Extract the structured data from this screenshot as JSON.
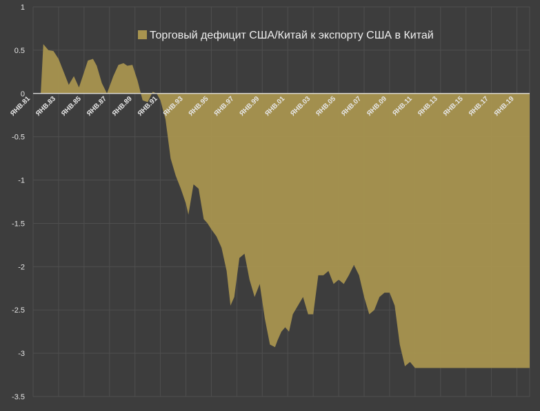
{
  "chart_data": {
    "type": "area",
    "title": "",
    "xlabel": "",
    "ylabel": "",
    "ylim": [
      -3.5,
      1
    ],
    "yticks": [
      1,
      0.5,
      0,
      -0.5,
      -1,
      -1.5,
      -2,
      -2.5,
      -3,
      -3.5
    ],
    "ytick_labels": [
      "1",
      "0.5",
      "0",
      "-0.5",
      "-1",
      "-1.5",
      "-2",
      "-2.5",
      "-3",
      "-3.5"
    ],
    "xlim": [
      1981.0,
      2020.0
    ],
    "xticks": [
      1981,
      1983,
      1985,
      1987,
      1989,
      1991,
      1993,
      1995,
      1997,
      1999,
      2001,
      2003,
      2005,
      2007,
      2009,
      2011,
      2013,
      2015,
      2017,
      2019
    ],
    "xtick_labels": [
      "ЯНВ.81",
      "ЯНВ.83",
      "ЯНВ.85",
      "ЯНВ.87",
      "ЯНВ.89",
      "ЯНВ.91",
      "ЯНВ.93",
      "ЯНВ.95",
      "ЯНВ.97",
      "ЯНВ.99",
      "ЯНВ.01",
      "ЯНВ.03",
      "ЯНВ.05",
      "ЯНВ.07",
      "ЯНВ.09",
      "ЯНВ.11",
      "ЯНВ.13",
      "ЯНВ.15",
      "ЯНВ.17",
      "ЯНВ.19"
    ],
    "grid": true,
    "legend_position": "top-center",
    "colors": {
      "background": "#3d3d3d",
      "fill": "#a8944f",
      "grid": "#4f4f4f",
      "zero_line": "#e8e8e8",
      "text": "#e6e6e6"
    },
    "series": [
      {
        "name": "Торговый дефицит США/Китай к экспорту США в Китай",
        "x": [
          1981.0,
          1981.6,
          1981.8,
          1982.2,
          1982.6,
          1983.0,
          1983.4,
          1983.8,
          1984.2,
          1984.6,
          1984.9,
          1985.3,
          1985.7,
          1986.0,
          1986.4,
          1986.8,
          1987.3,
          1987.7,
          1988.1,
          1988.4,
          1988.8,
          1989.2,
          1989.6,
          1990.0,
          1990.4,
          1990.7,
          1991.0,
          1991.4,
          1991.8,
          1992.2,
          1992.6,
          1993.0,
          1993.2,
          1993.6,
          1994.0,
          1994.4,
          1994.7,
          1995.0,
          1995.4,
          1995.8,
          1996.2,
          1996.5,
          1996.8,
          1997.2,
          1997.6,
          1998.0,
          1998.4,
          1998.8,
          1999.2,
          1999.6,
          2000.0,
          2000.2,
          2000.5,
          2000.8,
          2001.1,
          2001.4,
          2001.8,
          2002.2,
          2002.6,
          2003.0,
          2003.4,
          2003.8,
          2004.2,
          2004.6,
          2005.0,
          2005.4,
          2005.8,
          2006.2,
          2006.6,
          2007.0,
          2007.4,
          2007.8,
          2008.2,
          2008.6,
          2009.0,
          2009.4,
          2009.8,
          2010.2,
          2010.6,
          2011.0,
          2011.4,
          2011.8,
          2012.2,
          2012.6,
          2013.0,
          2013.4,
          2013.8,
          2014.2,
          2014.6,
          2015.0,
          2015.4,
          2015.8,
          2016.2,
          2016.6,
          2017.0,
          2017.4,
          2017.8,
          2018.2,
          2018.6,
          2019.0,
          2019.3,
          2019.6,
          2019.8,
          2020.0
        ],
        "y": [
          0.0,
          0.0,
          0.57,
          0.5,
          0.49,
          0.4,
          0.25,
          0.1,
          0.2,
          0.07,
          0.2,
          0.38,
          0.4,
          0.32,
          0.12,
          0.0,
          0.2,
          0.33,
          0.35,
          0.32,
          0.33,
          0.15,
          -0.08,
          -0.1,
          0.02,
          0.0,
          -0.08,
          -0.3,
          -0.75,
          -0.95,
          -1.1,
          -1.27,
          -1.4,
          -1.05,
          -1.1,
          -1.45,
          -1.5,
          -1.57,
          -1.65,
          -1.78,
          -2.05,
          -2.45,
          -2.35,
          -1.9,
          -1.85,
          -2.15,
          -2.35,
          -2.2,
          -2.6,
          -2.9,
          -2.93,
          -2.85,
          -2.75,
          -2.7,
          -2.75,
          -2.55,
          -2.45,
          -2.35,
          -2.55,
          -2.55,
          -2.1,
          -2.1,
          -2.05,
          -2.2,
          -2.15,
          -2.2,
          -2.1,
          -1.98,
          -2.1,
          -2.35,
          -2.55,
          -2.5,
          -2.35,
          -2.3,
          -2.3,
          -2.45,
          -2.9,
          -3.15,
          -3.1,
          -3.17,
          -3.17,
          -3.17,
          -3.17,
          -3.17,
          -3.17,
          -3.17,
          -3.17,
          -3.17,
          -3.17,
          -3.17,
          -3.17,
          -3.17,
          -3.17,
          -3.17,
          -3.17,
          -3.17,
          -3.17,
          -3.17,
          -3.17,
          -3.17,
          -3.17,
          -3.17,
          -3.17,
          -3.17
        ]
      }
    ]
  }
}
